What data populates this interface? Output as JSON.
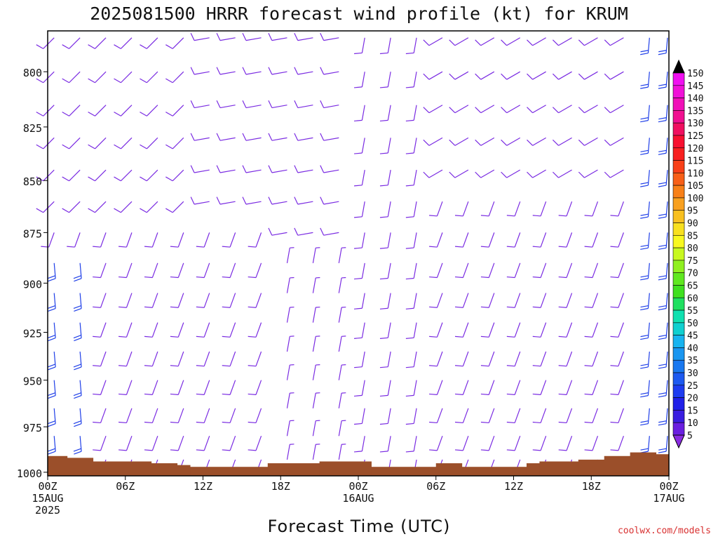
{
  "title": "2025081500 HRRR forecast wind profile (kt) for KRUM",
  "credit": "coolwx.com/models",
  "colors": {
    "ground": "#9b4f2a",
    "barb_light": "#7a2be2",
    "barb_strong": "#1f3fe8"
  },
  "chart_data": {
    "type": "wind-barb-profile",
    "title": "2025081500 HRRR forecast wind profile (kt) for KRUM",
    "xlabel": "Forecast Time (UTC)",
    "ylabel": "",
    "y_scale": "log-pressure (inverted)",
    "x_range_hours": [
      0,
      48
    ],
    "y_range_hPa": [
      1002,
      782
    ],
    "x_ticks": [
      {
        "hour": 0,
        "label": "00Z",
        "sub": [
          "15AUG",
          "2025"
        ]
      },
      {
        "hour": 6,
        "label": "06Z",
        "sub": []
      },
      {
        "hour": 12,
        "label": "12Z",
        "sub": []
      },
      {
        "hour": 18,
        "label": "18Z",
        "sub": []
      },
      {
        "hour": 24,
        "label": "00Z",
        "sub": [
          "16AUG"
        ]
      },
      {
        "hour": 30,
        "label": "06Z",
        "sub": []
      },
      {
        "hour": 36,
        "label": "12Z",
        "sub": []
      },
      {
        "hour": 42,
        "label": "18Z",
        "sub": []
      },
      {
        "hour": 48,
        "label": "00Z",
        "sub": [
          "17AUG"
        ]
      }
    ],
    "y_ticks": [
      800,
      825,
      850,
      875,
      900,
      925,
      950,
      975,
      1000
    ],
    "colorbar": {
      "unit": "kt",
      "levels": [
        5,
        10,
        15,
        20,
        25,
        30,
        35,
        40,
        45,
        50,
        55,
        60,
        65,
        70,
        75,
        80,
        85,
        90,
        95,
        100,
        105,
        110,
        115,
        120,
        125,
        130,
        135,
        140,
        145,
        150
      ],
      "colors": [
        "#8a2be2",
        "#6a1fe0",
        "#3a1ee0",
        "#2020e8",
        "#1e3cf0",
        "#1e5af0",
        "#1a78f0",
        "#1a96f0",
        "#18b4f0",
        "#10d0d0",
        "#10e0b0",
        "#20e060",
        "#40e020",
        "#60e820",
        "#90f020",
        "#c8f820",
        "#f8f820",
        "#f8e020",
        "#f8c020",
        "#f8a020",
        "#f88018",
        "#f86018",
        "#f84018",
        "#f82020",
        "#f81030",
        "#f01060",
        "#f01090",
        "#f010b8",
        "#f010d8",
        "#f010f0"
      ]
    },
    "ground_surface_hPa": [
      {
        "h_start": 0,
        "h_end": 1.5,
        "p": 991
      },
      {
        "h_start": 1.5,
        "h_end": 3.5,
        "p": 992
      },
      {
        "h_start": 3.5,
        "h_end": 8,
        "p": 994
      },
      {
        "h_start": 8,
        "h_end": 10,
        "p": 995
      },
      {
        "h_start": 10,
        "h_end": 11,
        "p": 996
      },
      {
        "h_start": 11,
        "h_end": 17,
        "p": 997
      },
      {
        "h_start": 17,
        "h_end": 21,
        "p": 995
      },
      {
        "h_start": 21,
        "h_end": 25,
        "p": 994
      },
      {
        "h_start": 25,
        "h_end": 30,
        "p": 997
      },
      {
        "h_start": 30,
        "h_end": 32,
        "p": 995
      },
      {
        "h_start": 32,
        "h_end": 37,
        "p": 997
      },
      {
        "h_start": 37,
        "h_end": 38,
        "p": 995
      },
      {
        "h_start": 38,
        "h_end": 41,
        "p": 994
      },
      {
        "h_start": 41,
        "h_end": 43,
        "p": 993
      },
      {
        "h_start": 43,
        "h_end": 45,
        "p": 991
      },
      {
        "h_start": 45,
        "h_end": 47,
        "p": 989
      },
      {
        "h_start": 47,
        "h_end": 48,
        "p": 990
      }
    ],
    "barb_hours": [
      0.5,
      2.5,
      4.5,
      6.5,
      8.5,
      10.5,
      12.5,
      14.5,
      16.5,
      18.5,
      20.5,
      22.5,
      24.5,
      26.5,
      28.5,
      30.5,
      32.5,
      34.5,
      36.5,
      38.5,
      40.5,
      42.5,
      44.5,
      46.5,
      48
    ],
    "barb_levels_hPa": [
      785,
      800,
      815,
      830,
      845,
      860,
      875,
      890,
      905,
      920,
      935,
      950,
      965,
      980,
      993
    ],
    "wind_regimes": [
      {
        "hours": [
          0,
          12
        ],
        "levels": "above 860 hPa",
        "dir_deg": 225,
        "speed_kt": 10
      },
      {
        "hours": [
          0,
          3
        ],
        "levels": "below 880 hPa",
        "dir_deg": 175,
        "speed_kt": 22
      },
      {
        "hours": [
          3,
          18
        ],
        "levels": "860-990 hPa",
        "dir_deg": 200,
        "speed_kt": 12
      },
      {
        "hours": [
          12,
          24
        ],
        "levels": "above 860 hPa",
        "dir_deg": 260,
        "speed_kt": 8
      },
      {
        "hours": [
          18,
          24
        ],
        "levels": "880-990 hPa",
        "dir_deg": 10,
        "speed_kt": 6
      },
      {
        "hours": [
          24,
          30
        ],
        "levels": "all",
        "dir_deg": 190,
        "speed_kt": 8
      },
      {
        "hours": [
          30,
          46
        ],
        "levels": "above 850 hPa",
        "dir_deg": 240,
        "speed_kt": 10
      },
      {
        "hours": [
          30,
          46
        ],
        "levels": "850-990 hPa",
        "dir_deg": 200,
        "speed_kt": 12
      },
      {
        "hours": [
          46,
          48
        ],
        "levels": "all",
        "dir_deg": 185,
        "speed_kt": 22
      }
    ]
  }
}
